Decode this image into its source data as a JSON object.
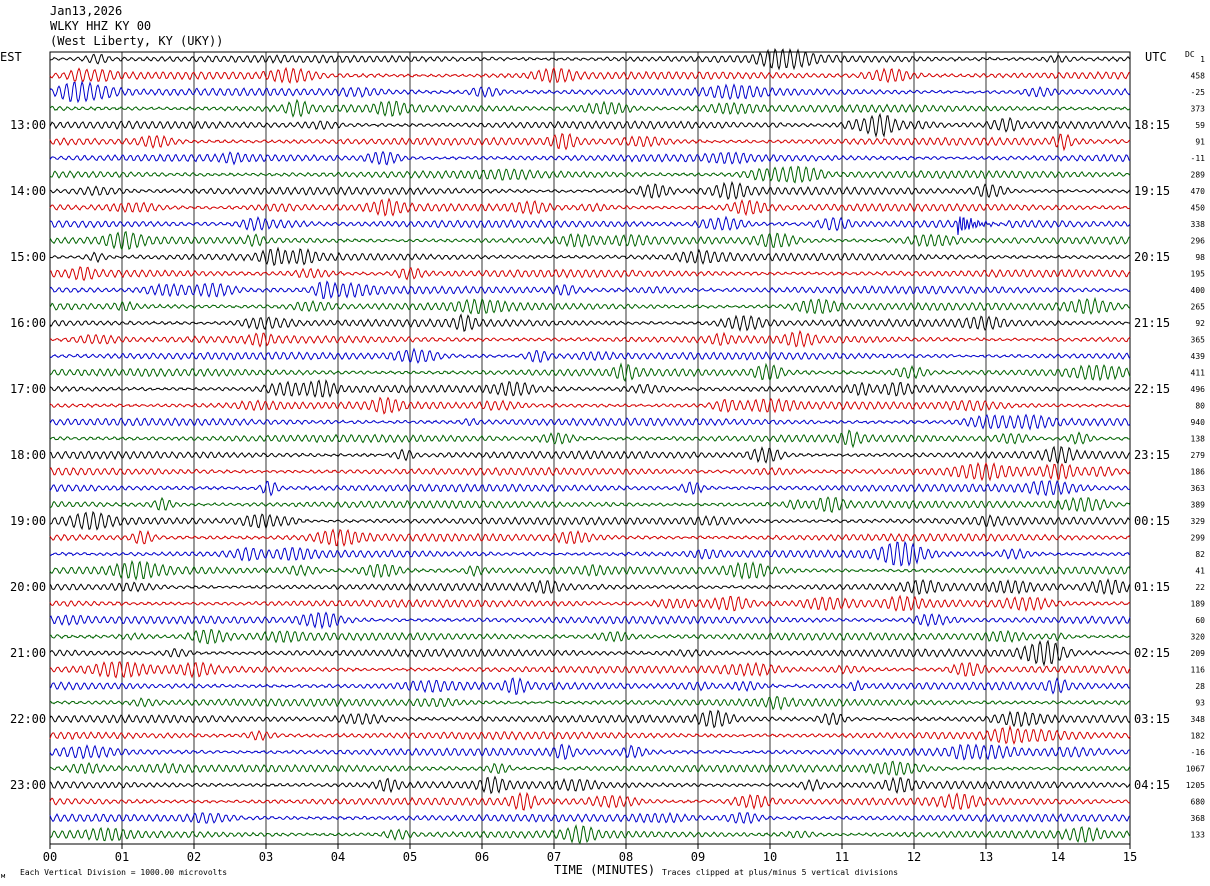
{
  "header": {
    "date": "Jan13,2026",
    "station": "WLKY HHZ KY 00",
    "location": "(West Liberty, KY (UKY))"
  },
  "left_label": "EST",
  "right_label": "UTC",
  "dc_label": "DC",
  "footer": {
    "scale_note": "Each Vertical Division = 1000.00 microvolts",
    "xlabel": "TIME (MINUTES)",
    "clip_note": "Traces clipped at plus/minus 5 vertical divisions"
  },
  "colors": {
    "trace_cycle": [
      "#000000",
      "#d40000",
      "#0000cc",
      "#006400"
    ],
    "grid": "#000000",
    "background": "#ffffff"
  },
  "chart_data": {
    "type": "line",
    "title": "",
    "xlabel": "TIME (MINUTES)",
    "ylabel": "",
    "xlim": [
      0,
      15
    ],
    "x_ticks": [
      "00",
      "01",
      "02",
      "03",
      "04",
      "05",
      "06",
      "07",
      "08",
      "09",
      "10",
      "11",
      "12",
      "13",
      "14",
      "15"
    ],
    "rows": 48,
    "est_hour_labels": [
      "13:00",
      "14:00",
      "15:00",
      "16:00",
      "17:00",
      "18:00",
      "19:00",
      "20:00",
      "21:00",
      "22:00",
      "23:00"
    ],
    "utc_hour_labels": [
      "18:15",
      "19:15",
      "20:15",
      "21:15",
      "22:15",
      "23:15",
      "00:15",
      "01:15",
      "02:15",
      "03:15",
      "04:15"
    ],
    "hour_label_first_row": 4,
    "hour_label_every_rows": 4,
    "dc_offsets": [
      "1",
      "458",
      "-25",
      "373",
      "59",
      "91",
      "-11",
      "289",
      "470",
      "450",
      "338",
      "296",
      "98",
      "195",
      "400",
      "265",
      "92",
      "365",
      "439",
      "411",
      "496",
      "80",
      "940",
      "138",
      "279",
      "186",
      "363",
      "389",
      "329",
      "299",
      "82",
      "41",
      "22",
      "189",
      "60",
      "320",
      "209",
      "116",
      "28",
      "93",
      "348",
      "182",
      "-16",
      "1067",
      "1205",
      "680",
      "368",
      "133"
    ],
    "events": [
      {
        "row": 10,
        "minute": 12.6,
        "amplitude": "large",
        "duration_min": 0.7
      }
    ]
  }
}
